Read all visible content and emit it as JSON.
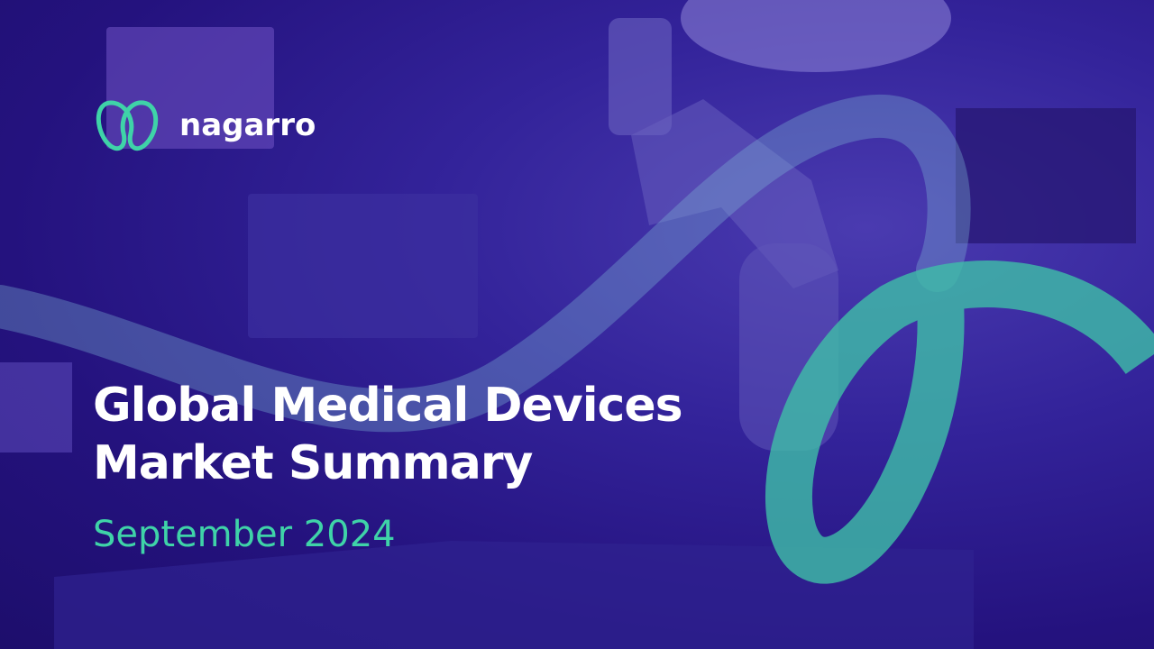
{
  "brand": {
    "name": "nagarro",
    "logo_color": "#3fd3a8"
  },
  "slide": {
    "title_line1": "Global Medical Devices",
    "title_line2": "Market Summary",
    "subtitle": "September 2024"
  },
  "colors": {
    "background": "#2a1a8a",
    "accent": "#3fd3a8",
    "text": "#ffffff"
  }
}
